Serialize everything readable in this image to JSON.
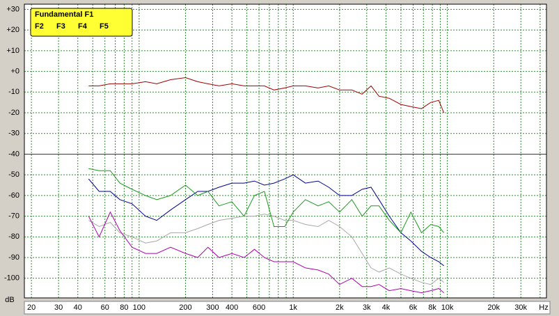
{
  "chart_data": {
    "type": "line",
    "x_log": true,
    "grid": true,
    "legend": "top-left",
    "xlabel": "Hz",
    "ylabel": "dB",
    "xlim": [
      18,
      44000
    ],
    "ylim": [
      -109.5,
      32.5
    ],
    "xticks": [
      20,
      30,
      40,
      60,
      80,
      100,
      200,
      300,
      400,
      600,
      {
        "value": 1000,
        "label": "1k"
      },
      {
        "value": 2000,
        "label": "2k"
      },
      {
        "value": 3000,
        "label": "3k"
      },
      {
        "value": 4000,
        "label": "4k"
      },
      {
        "value": 6000,
        "label": "6k"
      },
      {
        "value": 8000,
        "label": "8k"
      },
      {
        "value": 10000,
        "label": "10k"
      },
      {
        "value": 20000,
        "label": "20k"
      },
      {
        "value": 30000,
        "label": "30k"
      }
    ],
    "x_minor_grid": [
      50,
      70,
      90,
      500,
      700,
      800,
      900,
      5000,
      7000,
      9000,
      40000
    ],
    "yticks": [
      {
        "value": 30,
        "label": "+30"
      },
      {
        "value": 20,
        "label": "+20"
      },
      {
        "value": 10,
        "label": "+10"
      },
      {
        "value": 0,
        "label": "+0"
      },
      -10,
      -20,
      -30,
      -40,
      -50,
      -60,
      -70,
      -80,
      -90,
      -100
    ],
    "reference_line": {
      "value": -40,
      "color": "#c00000"
    },
    "x": [
      47,
      55,
      65,
      75,
      90,
      110,
      130,
      160,
      200,
      240,
      280,
      330,
      400,
      480,
      560,
      650,
      750,
      880,
      1000,
      1200,
      1450,
      1700,
      2000,
      2400,
      2800,
      3200,
      3600,
      4200,
      5000,
      5800,
      6800,
      7800,
      8800,
      9500
    ],
    "series": [
      {
        "name": "Fundamental F1",
        "color": "#a00000",
        "values": [
          -7,
          -7,
          -6,
          -6,
          -6,
          -5,
          -6,
          -4,
          -3,
          -5,
          -6,
          -7,
          -6,
          -7,
          -7,
          -7,
          -9,
          -8,
          -7,
          -7,
          -8,
          -7,
          -9,
          -9,
          -11,
          -7,
          -12,
          -13,
          -16,
          -17,
          -18,
          -15,
          -14,
          -20
        ]
      },
      {
        "name": "F2",
        "color": "#1a9a1a",
        "values": [
          -47,
          -48,
          -48,
          -54,
          -57,
          -60,
          -62,
          -60,
          -55,
          -60,
          -58,
          -65,
          -63,
          -70,
          -60,
          -58,
          -75,
          -75,
          -68,
          -62,
          -65,
          -63,
          -68,
          -62,
          -70,
          -65,
          -65,
          -72,
          -78,
          -68,
          -78,
          -74,
          -75,
          -78
        ]
      },
      {
        "name": "F3",
        "color": "#000090",
        "values": [
          -52,
          -58,
          -58,
          -62,
          -64,
          -70,
          -72,
          -67,
          -62,
          -58,
          -58,
          -56,
          -54,
          -54,
          -53,
          -55,
          -54,
          -52,
          -50,
          -54,
          -53,
          -56,
          -60,
          -60,
          -57,
          -56,
          -62,
          -70,
          -78,
          -82,
          -87,
          -90,
          -92,
          -94
        ]
      },
      {
        "name": "F4",
        "color": "#b000b0",
        "values": [
          -70,
          -80,
          -68,
          -77,
          -85,
          -88,
          -88,
          -85,
          -88,
          -90,
          -85,
          -90,
          -88,
          -90,
          -86,
          -90,
          -92,
          -92,
          -92,
          -95,
          -96,
          -98,
          -103,
          -100,
          -104,
          -104,
          -103,
          -106,
          -105,
          -106,
          -107,
          -106,
          -105,
          -107
        ]
      },
      {
        "name": "F5",
        "color": "#a8a8a8",
        "values": [
          -72,
          -75,
          -73,
          -78,
          -80,
          -83,
          -82,
          -78,
          -78,
          -76,
          -74,
          -72,
          -71,
          -70,
          -70,
          -69,
          -70,
          -72,
          -72,
          -74,
          -75,
          -72,
          -75,
          -80,
          -88,
          -95,
          -97,
          -95,
          -98,
          -100,
          -102,
          -103,
          -100,
          -102
        ]
      }
    ]
  }
}
